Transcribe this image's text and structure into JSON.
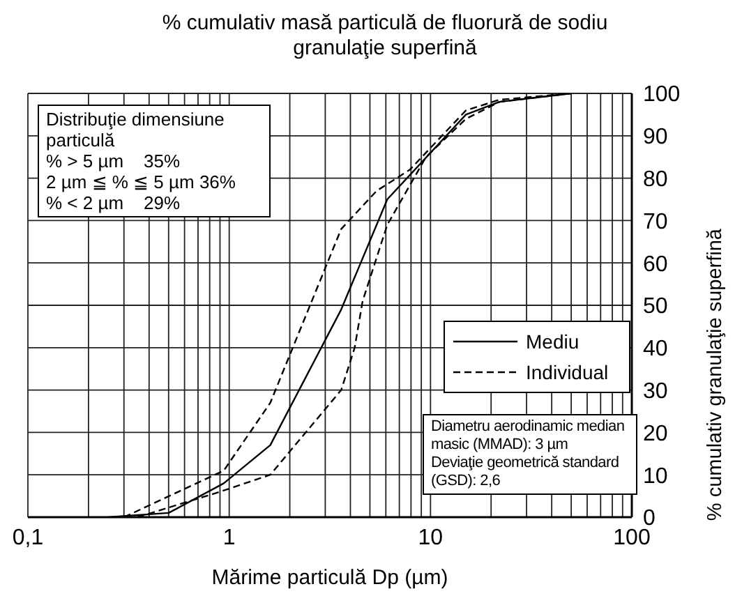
{
  "chart_data": {
    "type": "line",
    "title": "% cumulativ masă particulă de fluorură de sodiu granulaţie superfină",
    "xlabel": "Mărime particulă Dp (µm)",
    "ylabel": "% cumulativ granulaţie superfină",
    "log": "x",
    "grid": true,
    "legend": "right",
    "marker": "none",
    "xlim": [
      0.1,
      100
    ],
    "xticks": [
      {
        "value": 0.1,
        "label": "0,1"
      },
      {
        "value": 0.2,
        "label": null
      },
      {
        "value": 0.3,
        "label": null
      },
      {
        "value": 0.4,
        "label": null
      },
      {
        "value": 0.5,
        "label": null
      },
      {
        "value": 0.6,
        "label": null
      },
      {
        "value": 0.7,
        "label": null
      },
      {
        "value": 0.8,
        "label": null
      },
      {
        "value": 0.9,
        "label": null
      },
      1,
      {
        "value": 2,
        "label": null
      },
      {
        "value": 3,
        "label": null
      },
      {
        "value": 4,
        "label": null
      },
      {
        "value": 5,
        "label": null
      },
      {
        "value": 6,
        "label": null
      },
      {
        "value": 7,
        "label": null
      },
      {
        "value": 8,
        "label": null
      },
      {
        "value": 9,
        "label": null
      },
      10,
      {
        "value": 20,
        "label": null
      },
      {
        "value": 30,
        "label": null
      },
      {
        "value": 40,
        "label": null
      },
      {
        "value": 50,
        "label": null
      },
      {
        "value": 60,
        "label": null
      },
      {
        "value": 70,
        "label": null
      },
      {
        "value": 80,
        "label": null
      },
      {
        "value": 90,
        "label": null
      },
      100
    ],
    "ylim": [
      0,
      100
    ],
    "yticks": [
      0,
      10,
      20,
      30,
      40,
      50,
      60,
      70,
      80,
      90,
      100
    ],
    "series": [
      {
        "name": "Mediu",
        "color": "#000000",
        "line_style": "solid",
        "x": [
          0.25,
          0.5,
          0.94,
          1.6,
          3.6,
          6.1,
          15,
          22,
          50
        ],
        "values": [
          0,
          1,
          8,
          17,
          49,
          75,
          95,
          98,
          100
        ]
      },
      {
        "name": "Individual",
        "color": "#000000",
        "line_style": "dashed",
        "x": [
          0.3,
          0.94,
          1.6,
          3.6,
          5.4,
          7.9,
          15,
          22,
          50
        ],
        "values": [
          0,
          11,
          27,
          68,
          77,
          82,
          96,
          98.5,
          100
        ]
      },
      {
        "color": "#000000",
        "line_style": "dashed",
        "x": [
          0.35,
          0.9,
          1.6,
          3.6,
          4.2,
          4.6,
          6.1,
          9.5,
          15,
          22,
          50
        ],
        "values": [
          0,
          6,
          10,
          30,
          40,
          51,
          69,
          85,
          94,
          98,
          100
        ]
      }
    ],
    "annotations": [
      "Distribuţie dimensiune particulă\n% > 5 µm    35%\n2 µm ≦ % ≦ 5 µm 36%\n% < 2 µm    29%",
      "Diametru aerodinamic median masic (MMAD): 3 µm\nDeviaţie geometrică standard (GSD): 2,6"
    ]
  }
}
